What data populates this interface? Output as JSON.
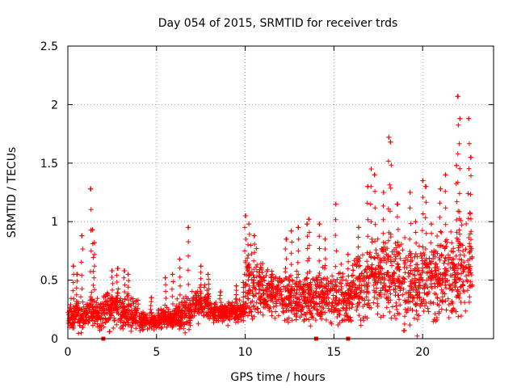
{
  "chart_data": {
    "type": "scatter",
    "title": "Day 054 of 2015, SRMTID for receiver trds",
    "xlabel": "GPS time / hours",
    "ylabel": "SRMTID / TECUs",
    "xlim": [
      0,
      24
    ],
    "ylim": [
      0,
      2.5
    ],
    "xticks": [
      0,
      5,
      10,
      15,
      20
    ],
    "xtick_labels": [
      "0",
      "5",
      "10",
      "15",
      "20"
    ],
    "yticks": [
      0,
      0.5,
      1,
      1.5,
      2,
      2.5
    ],
    "ytick_labels": [
      "0",
      "0.5",
      "1",
      "1.5",
      "2",
      "2.5"
    ],
    "grid": true,
    "marker": "+",
    "color": "#ff0000",
    "series": [
      {
        "name": "SRMTID",
        "segments": [
          {
            "x0": 0.0,
            "x1": 1.0,
            "base": 0.2,
            "spread": 0.14,
            "spikes": [
              [
                0.3,
                0.62
              ],
              [
                0.5,
                0.55
              ],
              [
                0.8,
                0.88
              ]
            ]
          },
          {
            "x0": 1.0,
            "x1": 2.0,
            "base": 0.22,
            "spread": 0.16,
            "spikes": [
              [
                1.3,
                1.28
              ],
              [
                1.4,
                0.93
              ],
              [
                1.5,
                0.82
              ]
            ]
          },
          {
            "x0": 2.0,
            "x1": 3.0,
            "base": 0.25,
            "spread": 0.18,
            "spikes": [
              [
                2.5,
                0.58
              ],
              [
                2.8,
                0.6
              ]
            ]
          },
          {
            "x0": 3.0,
            "x1": 4.0,
            "base": 0.22,
            "spread": 0.16,
            "spikes": [
              [
                3.2,
                0.58
              ],
              [
                3.4,
                0.55
              ]
            ]
          },
          {
            "x0": 4.0,
            "x1": 5.0,
            "base": 0.15,
            "spread": 0.08,
            "spikes": [
              [
                4.7,
                0.35
              ]
            ]
          },
          {
            "x0": 5.0,
            "x1": 6.0,
            "base": 0.17,
            "spread": 0.09,
            "spikes": [
              [
                5.5,
                0.52
              ],
              [
                5.9,
                0.55
              ]
            ]
          },
          {
            "x0": 6.0,
            "x1": 7.0,
            "base": 0.22,
            "spread": 0.15,
            "spikes": [
              [
                6.3,
                0.68
              ],
              [
                6.8,
                0.95
              ]
            ]
          },
          {
            "x0": 7.0,
            "x1": 8.0,
            "base": 0.3,
            "spread": 0.16,
            "spikes": [
              [
                7.5,
                0.62
              ],
              [
                7.9,
                0.55
              ]
            ]
          },
          {
            "x0": 8.0,
            "x1": 9.0,
            "base": 0.22,
            "spread": 0.08,
            "spikes": [
              [
                8.6,
                0.4
              ]
            ]
          },
          {
            "x0": 9.0,
            "x1": 10.0,
            "base": 0.23,
            "spread": 0.1,
            "spikes": [
              [
                9.5,
                0.45
              ],
              [
                9.9,
                0.48
              ]
            ]
          },
          {
            "x0": 10.0,
            "x1": 11.0,
            "base": 0.45,
            "spread": 0.3,
            "spikes": [
              [
                10.0,
                1.05
              ],
              [
                10.2,
                0.98
              ],
              [
                10.5,
                0.88
              ]
            ]
          },
          {
            "x0": 11.0,
            "x1": 12.0,
            "base": 0.38,
            "spread": 0.2,
            "spikes": [
              [
                11.5,
                0.55
              ]
            ]
          },
          {
            "x0": 12.0,
            "x1": 13.0,
            "base": 0.35,
            "spread": 0.22,
            "spikes": [
              [
                12.3,
                0.85
              ],
              [
                12.6,
                0.92
              ]
            ]
          },
          {
            "x0": 13.0,
            "x1": 14.0,
            "base": 0.35,
            "spread": 0.25,
            "spikes": [
              [
                13.0,
                0.95
              ],
              [
                13.5,
                0.98
              ],
              [
                13.6,
                1.02
              ]
            ]
          },
          {
            "x0": 14.0,
            "x1": 15.0,
            "base": 0.35,
            "spread": 0.25,
            "spikes": [
              [
                14.2,
                0.98
              ],
              [
                14.5,
                0.85
              ]
            ]
          },
          {
            "x0": 15.0,
            "x1": 16.0,
            "base": 0.35,
            "spread": 0.25,
            "spikes": [
              [
                15.1,
                1.15
              ],
              [
                15.8,
                0.72
              ]
            ]
          },
          {
            "x0": 16.0,
            "x1": 17.0,
            "base": 0.45,
            "spread": 0.3,
            "spikes": [
              [
                16.4,
                0.95
              ],
              [
                16.9,
                1.3
              ]
            ]
          },
          {
            "x0": 17.0,
            "x1": 18.0,
            "base": 0.55,
            "spread": 0.35,
            "spikes": [
              [
                17.1,
                1.45
              ],
              [
                17.3,
                1.4
              ],
              [
                17.8,
                1.25
              ]
            ]
          },
          {
            "x0": 18.0,
            "x1": 19.0,
            "base": 0.5,
            "spread": 0.38,
            "spikes": [
              [
                18.1,
                1.72
              ],
              [
                18.2,
                1.68
              ],
              [
                18.6,
                1.15
              ]
            ]
          },
          {
            "x0": 19.0,
            "x1": 20.0,
            "base": 0.45,
            "spread": 0.35,
            "spikes": [
              [
                19.3,
                1.25
              ],
              [
                19.6,
                1.0
              ]
            ]
          },
          {
            "x0": 20.0,
            "x1": 21.0,
            "base": 0.5,
            "spread": 0.35,
            "spikes": [
              [
                20.0,
                1.35
              ],
              [
                20.2,
                1.3
              ],
              [
                20.5,
                0.98
              ]
            ]
          },
          {
            "x0": 21.0,
            "x1": 22.0,
            "base": 0.55,
            "spread": 0.4,
            "spikes": [
              [
                21.0,
                1.28
              ],
              [
                21.3,
                1.4
              ],
              [
                21.9,
                1.48
              ]
            ]
          },
          {
            "x0": 22.0,
            "x1": 22.8,
            "base": 0.6,
            "spread": 0.45,
            "spikes": [
              [
                22.0,
                2.07
              ],
              [
                22.1,
                1.88
              ],
              [
                22.6,
                1.88
              ],
              [
                22.7,
                1.55
              ]
            ]
          }
        ],
        "zero_markers": [
          2.0,
          14.0,
          15.8
        ]
      }
    ]
  }
}
